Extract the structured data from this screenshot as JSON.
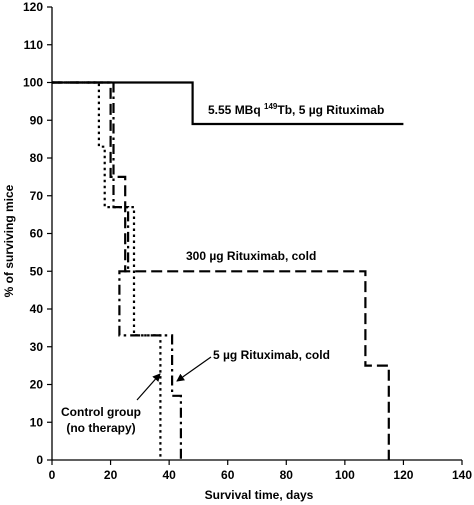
{
  "chart_data": {
    "type": "line",
    "title": "",
    "xlabel": "Survival time, days",
    "ylabel": "% of surviving mice",
    "xlim": [
      0,
      140
    ],
    "ylim": [
      0,
      120
    ],
    "x_ticks": [
      0,
      20,
      40,
      60,
      80,
      100,
      120,
      140
    ],
    "y_ticks": [
      0,
      10,
      20,
      30,
      40,
      50,
      60,
      70,
      80,
      90,
      100,
      110,
      120
    ],
    "grid": false,
    "legend": "none",
    "step": true,
    "series": [
      {
        "style": "solid",
        "points": [
          [
            0,
            100
          ],
          [
            48,
            100
          ],
          [
            48,
            89
          ],
          [
            120,
            89
          ]
        ]
      },
      {
        "style": "dashed",
        "points": [
          [
            0,
            100
          ],
          [
            20,
            100
          ],
          [
            20,
            75
          ],
          [
            25,
            75
          ],
          [
            25,
            50
          ],
          [
            107,
            50
          ],
          [
            107,
            25
          ],
          [
            115,
            25
          ],
          [
            115,
            0
          ]
        ]
      },
      {
        "style": "dotted",
        "points": [
          [
            0,
            100
          ],
          [
            16,
            100
          ],
          [
            16,
            83
          ],
          [
            18,
            83
          ],
          [
            18,
            67
          ],
          [
            28,
            67
          ],
          [
            28,
            33
          ],
          [
            37,
            33
          ],
          [
            37,
            0
          ]
        ]
      },
      {
        "style": "dash-dot",
        "points": [
          [
            0,
            100
          ],
          [
            21,
            100
          ],
          [
            21,
            67
          ],
          [
            26,
            67
          ],
          [
            26,
            50
          ],
          [
            23,
            50
          ],
          [
            23,
            33
          ],
          [
            41,
            33
          ],
          [
            41,
            17
          ],
          [
            44,
            17
          ],
          [
            44,
            0
          ]
        ]
      }
    ],
    "annotations": [
      {
        "id": "tb",
        "main": "5.55 MBq ",
        "sup": "149",
        "rest": "Tb, 5 µg Rituximab"
      },
      {
        "id": "cold300",
        "text": "300 µg Rituximab, cold"
      },
      {
        "id": "cold5",
        "text": "5 µg Rituximab, cold"
      },
      {
        "id": "ctrl1",
        "text": "Control group"
      },
      {
        "id": "ctrl2",
        "text": "(no therapy)"
      }
    ],
    "x_tick_labels": [
      "0",
      "20",
      "40",
      "60",
      "80",
      "100",
      "120",
      "140"
    ],
    "y_tick_labels": [
      "0",
      "10",
      "20",
      "30",
      "40",
      "50",
      "60",
      "70",
      "80",
      "90",
      "100",
      "110",
      "120"
    ]
  }
}
